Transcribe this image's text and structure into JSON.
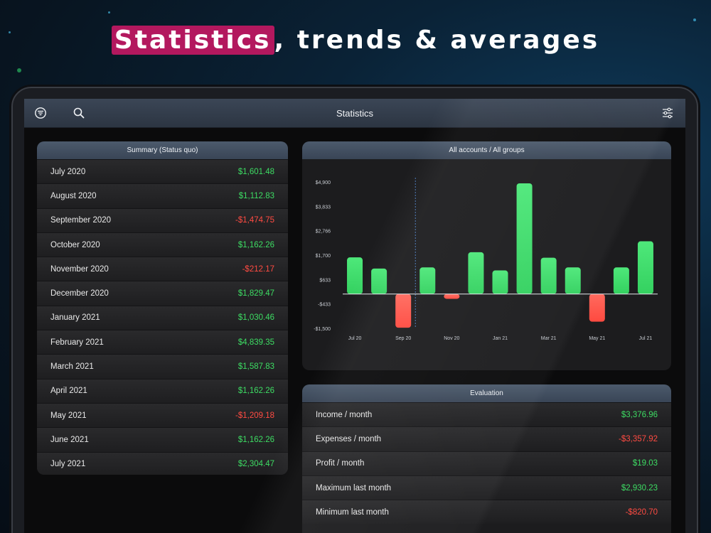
{
  "headline": {
    "highlight": "Statistics",
    "rest": ", trends & averages"
  },
  "navbar": {
    "title": "Statistics"
  },
  "summary": {
    "title": "Summary (Status quo)",
    "rows": [
      {
        "label": "July 2020",
        "value": "$1,601.48",
        "tone": "pos"
      },
      {
        "label": "August 2020",
        "value": "$1,112.83",
        "tone": "pos"
      },
      {
        "label": "September 2020",
        "value": "-$1,474.75",
        "tone": "neg"
      },
      {
        "label": "October 2020",
        "value": "$1,162.26",
        "tone": "pos"
      },
      {
        "label": "November 2020",
        "value": "-$212.17",
        "tone": "neg"
      },
      {
        "label": "December 2020",
        "value": "$1,829.47",
        "tone": "pos"
      },
      {
        "label": "January 2021",
        "value": "$1,030.46",
        "tone": "pos"
      },
      {
        "label": "February 2021",
        "value": "$4,839.35",
        "tone": "pos"
      },
      {
        "label": "March 2021",
        "value": "$1,587.83",
        "tone": "pos"
      },
      {
        "label": "April 2021",
        "value": "$1,162.26",
        "tone": "pos"
      },
      {
        "label": "May 2021",
        "value": "-$1,209.18",
        "tone": "neg"
      },
      {
        "label": "June 2021",
        "value": "$1,162.26",
        "tone": "pos"
      },
      {
        "label": "July 2021",
        "value": "$2,304.47",
        "tone": "pos"
      }
    ]
  },
  "chart_card": {
    "title": "All accounts / All groups"
  },
  "chart_data": {
    "type": "bar",
    "categories": [
      "Jul 20",
      "Aug 20",
      "Sep 20",
      "Oct 20",
      "Nov 20",
      "Dec 20",
      "Jan 21",
      "Feb 21",
      "Mar 21",
      "Apr 21",
      "May 21",
      "Jun 21",
      "Jul 21"
    ],
    "values": [
      1601.48,
      1112.83,
      -1474.75,
      1162.26,
      -212.17,
      1829.47,
      1030.46,
      4839.35,
      1587.83,
      1162.26,
      -1209.18,
      1162.26,
      2304.47
    ],
    "x_tick_labels": [
      "Jul 20",
      "Sep 20",
      "Nov 20",
      "Jan 21",
      "Mar 21",
      "May 21",
      "Jul 21"
    ],
    "y_ticks": [
      4900,
      3833,
      2766,
      1700,
      633,
      -433,
      -1500
    ],
    "y_tick_labels": [
      "$4,900",
      "$3,833",
      "$2,766",
      "$1,700",
      "$633",
      "-$433",
      "-$1,500"
    ],
    "ylim": [
      -1500,
      4900
    ],
    "colors": {
      "positive": "#34d160",
      "negative": "#ff4a40"
    }
  },
  "evaluation": {
    "title": "Evaluation",
    "rows": [
      {
        "label": "Income / month",
        "value": "$3,376.96",
        "tone": "pos"
      },
      {
        "label": "Expenses / month",
        "value": "-$3,357.92",
        "tone": "neg"
      },
      {
        "label": "Profit / month",
        "value": "$19.03",
        "tone": "pos"
      },
      {
        "label": "Maximum last month",
        "value": "$2,930.23",
        "tone": "pos"
      },
      {
        "label": "Minimum last month",
        "value": "-$820.70",
        "tone": "neg"
      }
    ]
  }
}
